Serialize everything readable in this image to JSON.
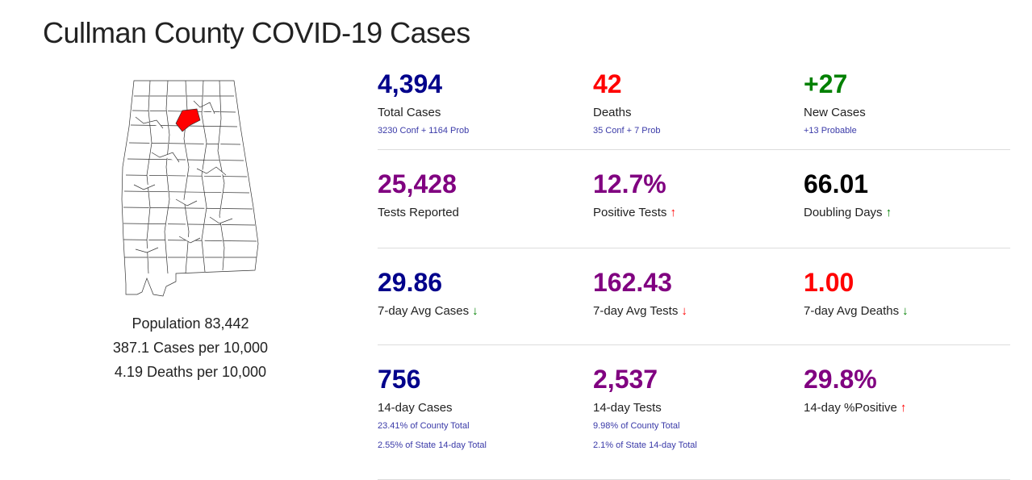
{
  "title": "Cullman County COVID-19 Cases",
  "colors": {
    "highlight_county": "#ff0000",
    "navy": "#00008b",
    "red": "#ff0000",
    "green": "#008000",
    "purple": "#800080",
    "black": "#000000",
    "subtext": "#3a3aa8",
    "divider": "#dcdcdc"
  },
  "summary": {
    "population": "Population 83,442",
    "cases_per_10k": "387.1 Cases per 10,000",
    "deaths_per_10k": "4.19 Deaths per 10,000"
  },
  "stats": {
    "total_cases": {
      "value": "4,394",
      "label": "Total Cases",
      "sub": "3230 Conf + 1164 Prob",
      "color": "navy"
    },
    "deaths": {
      "value": "42",
      "label": "Deaths",
      "sub": "35 Conf + 7 Prob",
      "color": "red"
    },
    "new_cases": {
      "value": "+27",
      "label": "New Cases",
      "sub": "+13 Probable",
      "color": "green"
    },
    "tests_reported": {
      "value": "25,428",
      "label": "Tests Reported",
      "color": "purple"
    },
    "positive_tests": {
      "value": "12.7%",
      "label": "Positive Tests",
      "trend": "up-red",
      "color": "purple"
    },
    "doubling_days": {
      "value": "66.01",
      "label": "Doubling Days",
      "trend": "up-green",
      "color": "black"
    },
    "avg7_cases": {
      "value": "29.86",
      "label": "7-day Avg Cases",
      "trend": "down-green",
      "color": "navy"
    },
    "avg7_tests": {
      "value": "162.43",
      "label": "7-day Avg Tests",
      "trend": "down-red",
      "color": "purple"
    },
    "avg7_deaths": {
      "value": "1.00",
      "label": "7-day Avg Deaths",
      "trend": "down-green",
      "color": "red"
    },
    "d14_cases": {
      "value": "756",
      "label": "14-day Cases",
      "sub": "23.41% of County Total",
      "sub2": "2.55% of State 14-day Total",
      "color": "navy"
    },
    "d14_tests": {
      "value": "2,537",
      "label": "14-day Tests",
      "sub": "9.98% of County Total",
      "sub2": "2.1% of State 14-day Total",
      "color": "purple"
    },
    "d14_positive": {
      "value": "29.8%",
      "label": "14-day %Positive",
      "trend": "up-red",
      "color": "purple"
    }
  }
}
